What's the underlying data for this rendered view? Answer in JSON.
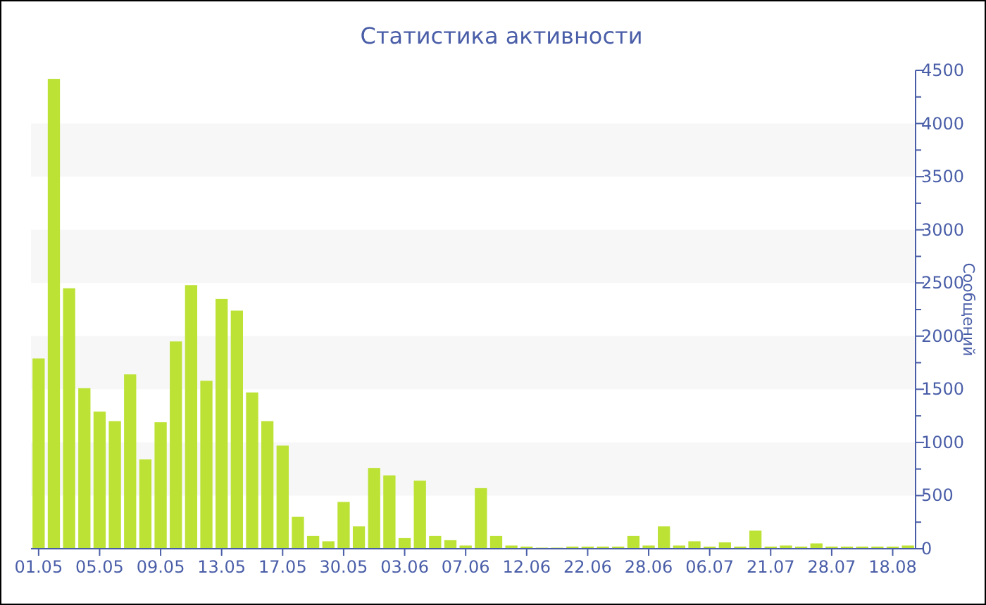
{
  "chart_data": {
    "type": "bar",
    "title": "Статистика активности",
    "ylabel": "Сообщений",
    "categories": [
      "01.05",
      null,
      null,
      null,
      "05.05",
      null,
      null,
      null,
      "09.05",
      null,
      null,
      null,
      "13.05",
      null,
      null,
      null,
      "17.05",
      null,
      null,
      null,
      "30.05",
      null,
      null,
      null,
      "03.06",
      null,
      null,
      null,
      "07.06",
      null,
      null,
      null,
      "12.06",
      null,
      null,
      null,
      "22.06",
      null,
      null,
      null,
      "28.06",
      null,
      null,
      null,
      "06.07",
      null,
      null,
      null,
      "21.07",
      null,
      null,
      null,
      "28.07",
      null,
      null,
      null,
      "18.08",
      null
    ],
    "values": [
      1790,
      4420,
      2450,
      1510,
      1290,
      1200,
      1640,
      840,
      1190,
      1950,
      2480,
      1580,
      2350,
      2240,
      1470,
      1200,
      970,
      300,
      120,
      70,
      440,
      210,
      760,
      690,
      100,
      640,
      120,
      80,
      30,
      570,
      120,
      30,
      20,
      10,
      10,
      20,
      20,
      20,
      20,
      120,
      30,
      210,
      30,
      70,
      20,
      60,
      20,
      170,
      20,
      30,
      20,
      50,
      20,
      20,
      20,
      20,
      20,
      30
    ],
    "color": "#bde236",
    "ylim": [
      0,
      4500
    ],
    "yticks": [
      0,
      {
        "value": 250,
        "label": null
      },
      500,
      {
        "value": 750,
        "label": null
      },
      1000,
      {
        "value": 1250,
        "label": null
      },
      1500,
      {
        "value": 1750,
        "label": null
      },
      2000,
      {
        "value": 2250,
        "label": null
      },
      2500,
      {
        "value": 2750,
        "label": null
      },
      3000,
      {
        "value": 3250,
        "label": null
      },
      3500,
      {
        "value": 3750,
        "label": null
      },
      4000,
      {
        "value": 4250,
        "label": null
      },
      4500
    ],
    "bands": [
      {
        "axis": "y",
        "from": 500,
        "to": 1000,
        "color": "#f7f7f7"
      },
      {
        "axis": "y",
        "from": 1500,
        "to": 2000,
        "color": "#f7f7f7"
      },
      {
        "axis": "y",
        "from": 2500,
        "to": 3000,
        "color": "#f7f7f7"
      },
      {
        "axis": "y",
        "from": 3500,
        "to": 4000,
        "color": "#f7f7f7"
      }
    ]
  }
}
